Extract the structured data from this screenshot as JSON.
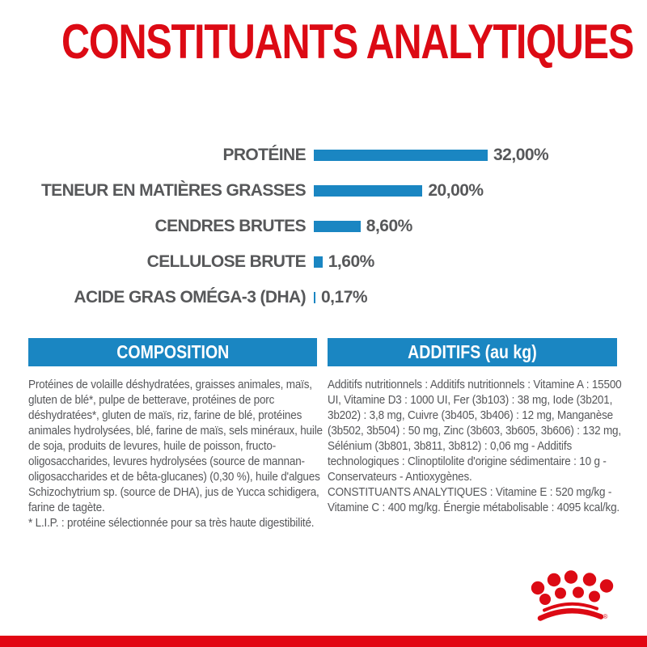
{
  "page": {
    "title": "CONSTITUANTS ANALYTIQUES"
  },
  "colors": {
    "accent_red": "#dc0a14",
    "footer_red": "#e20613",
    "bar_blue": "#1a86c2",
    "label_gray": "#57585a",
    "body_gray": "#56575a"
  },
  "chart_data": {
    "type": "bar",
    "orientation": "horizontal",
    "title": "",
    "xlabel": "",
    "ylabel": "",
    "unit": "%",
    "xlim": [
      0,
      32
    ],
    "grid": false,
    "legend": false,
    "categories": [
      "PROTÉINE",
      "TENEUR EN MATIÈRES GRASSES",
      "CENDRES BRUTES",
      "CELLULOSE BRUTE",
      "ACIDE GRAS OMÉGA-3 (DHA)"
    ],
    "values": [
      32.0,
      20.0,
      8.6,
      1.6,
      0.17
    ],
    "value_labels": [
      "32,00%",
      "20,00%",
      "8,60%",
      "1,60%",
      "0,17%"
    ],
    "bar_color": "#1a86c2"
  },
  "sections": {
    "composition": {
      "header": "COMPOSITION",
      "body": "Protéines de volaille déshydratées, graisses animales, maïs, gluten de blé*, pulpe de betterave, protéines de porc déshydratées*, gluten de maïs, riz, farine de blé, protéines animales hydrolysées, blé, farine de maïs, sels minéraux, huile de soja, produits de levures, huile de poisson, fructo-oligosaccharides, levures hydrolysées (source de mannan-oligosaccharides et de bêta-glucanes) (0,30 %), huile d'algues Schizochytrium sp. (source de DHA), jus de Yucca schidigera, farine de tagète.",
      "footnote": "* L.I.P. : protéine sélectionnée pour sa très haute digestibilité."
    },
    "additives": {
      "header": "ADDITIFS (au kg)",
      "body": "Additifs nutritionnels : Additifs nutritionnels : Vitamine A : 15500 UI, Vitamine D3 : 1000 UI, Fer (3b103) : 38 mg, Iode (3b201, 3b202) : 3,8 mg, Cuivre (3b405, 3b406) : 12 mg, Manganèse (3b502, 3b504) : 50 mg, Zinc (3b603, 3b605, 3b606) : 132 mg, Sélénium (3b801, 3b811, 3b812) : 0,06 mg - Additifs technologiques : Clinoptilolite d'origine sédimentaire : 10 g - Conservateurs - Antioxygènes.",
      "analytical": "CONSTITUANTS ANALYTIQUES : Vitamine E : 520 mg/kg - Vitamine C : 400 mg/kg. Énergie métabolisable : 4095 kcal/kg."
    }
  },
  "footer": {
    "brand": "Royal Canin crown logo",
    "registered_mark": "®"
  }
}
